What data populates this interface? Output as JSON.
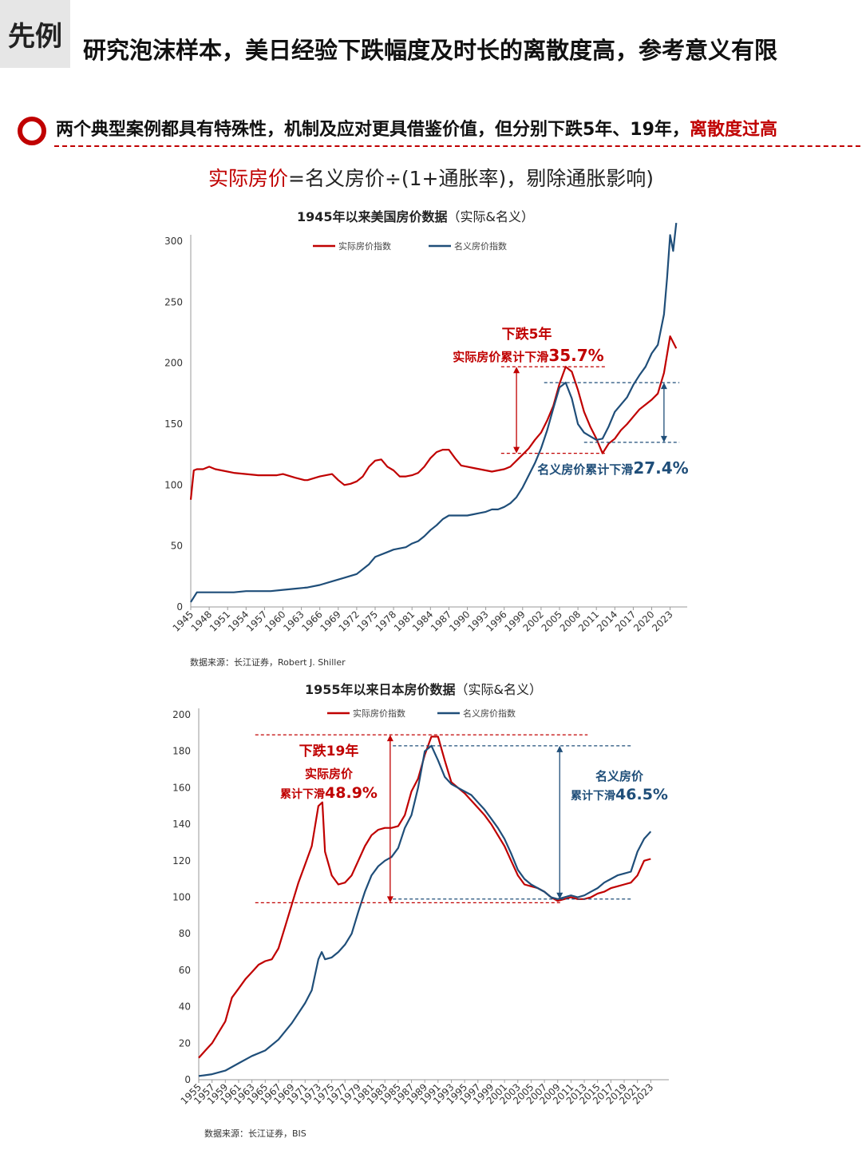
{
  "header": {
    "tag": "先例",
    "title": "研究泡沫样本，美日经验下跌幅度及时长的离散度高，参考意义有限"
  },
  "subhead": {
    "text": "两个典型案例都具有特殊性，机制及应对更具借鉴价值，但分别下跌5年、19年，",
    "highlight": "离散度过高"
  },
  "formula": {
    "red_part": "实际房价",
    "rest": "=名义房价÷(1+通胀率)，剔除通胀影响)"
  },
  "colors": {
    "real": "#c00000",
    "nominal": "#1f4e79",
    "accent": "#c00000"
  },
  "chart_data": [
    {
      "type": "line",
      "title": "1945年以来美国房价数据",
      "title_suffix": "（实际&名义）",
      "xlabel": "",
      "ylabel": "",
      "xlim": [
        1945,
        2025
      ],
      "ylim": [
        0,
        300
      ],
      "yticks": [
        "0",
        "50",
        "100",
        "150",
        "200",
        "250",
        "300"
      ],
      "xticks": [
        "1945",
        "1948",
        "1951",
        "1954",
        "1957",
        "1960",
        "1963",
        "1966",
        "1969",
        "1972",
        "1975",
        "1978",
        "1981",
        "1984",
        "1987",
        "1990",
        "1993",
        "1996",
        "1999",
        "2002",
        "2005",
        "2008",
        "2011",
        "2014",
        "2017",
        "2020",
        "2023"
      ],
      "legend": [
        "实际房价指数",
        "名义房价指数"
      ],
      "series": [
        {
          "name": "实际房价指数",
          "x": [
            1945,
            1945.5,
            1946,
            1947,
            1948,
            1949,
            1950,
            1952,
            1954,
            1956,
            1958,
            1959,
            1960,
            1962,
            1963.5,
            1964,
            1966,
            1967,
            1968,
            1969,
            1970,
            1971,
            1972,
            1973,
            1974,
            1975,
            1976,
            1977,
            1978,
            1979,
            1980,
            1981,
            1982,
            1983,
            1984,
            1985,
            1986,
            1987,
            1988,
            1989,
            1990,
            1991,
            1992,
            1993,
            1994,
            1995,
            1996,
            1997,
            1998,
            1999,
            2000,
            2001,
            2002,
            2003,
            2004,
            2005,
            2006,
            2007,
            2008,
            2009,
            2010,
            2011,
            2012,
            2013,
            2014,
            2015,
            2016,
            2017,
            2018,
            2019,
            2020,
            2021,
            2022,
            2023,
            2024
          ],
          "y": [
            88,
            112,
            113,
            113,
            115,
            113,
            112,
            110,
            109,
            108,
            108,
            108,
            109,
            106,
            104,
            104,
            107,
            108,
            109,
            104,
            100,
            101,
            103,
            107,
            115,
            120,
            121,
            115,
            112,
            107,
            107,
            108,
            110,
            115,
            122,
            127,
            129,
            129,
            122,
            116,
            115,
            114,
            113,
            112,
            111,
            112,
            113,
            115,
            120,
            125,
            130,
            137,
            143,
            153,
            165,
            183,
            197,
            193,
            178,
            160,
            148,
            138,
            126,
            134,
            138,
            145,
            150,
            156,
            162,
            166,
            170,
            175,
            192,
            222,
            212
          ]
        },
        {
          "name": "名义房价指数",
          "x": [
            1945,
            1946,
            1948,
            1950,
            1952,
            1954,
            1956,
            1958,
            1960,
            1962,
            1964,
            1966,
            1968,
            1970,
            1972,
            1974,
            1975,
            1977,
            1978,
            1979,
            1980,
            1981,
            1982,
            1983,
            1984,
            1985,
            1986,
            1987,
            1988,
            1989,
            1990,
            1991,
            1992,
            1993,
            1994,
            1995,
            1996,
            1997,
            1998,
            1999,
            2000,
            2001,
            2002,
            2003,
            2004,
            2005,
            2006,
            2007,
            2008,
            2009,
            2010,
            2011,
            2012,
            2013,
            2014,
            2015,
            2016,
            2017,
            2018,
            2019,
            2020,
            2021,
            2022,
            2022.5,
            2023,
            2023.5,
            2024
          ],
          "y": [
            4,
            12,
            12,
            12,
            12,
            13,
            13,
            13,
            14,
            15,
            16,
            18,
            21,
            24,
            27,
            35,
            41,
            45,
            47,
            48,
            49,
            52,
            54,
            58,
            63,
            67,
            72,
            75,
            75,
            75,
            75,
            76,
            77,
            78,
            80,
            80,
            82,
            85,
            90,
            98,
            108,
            118,
            130,
            145,
            163,
            180,
            184,
            171,
            150,
            143,
            140,
            137,
            138,
            148,
            160,
            166,
            172,
            182,
            190,
            197,
            208,
            215,
            240,
            270,
            305,
            292,
            315
          ]
        }
      ],
      "annotations": {
        "real_drop_title": "下跌5年",
        "real_drop_label": "实际房价累计下滑",
        "real_drop_value": "35.7%",
        "nominal_drop_label": "名义房价累计下滑",
        "nominal_drop_value": "27.4%"
      },
      "source": "数据来源：长江证券，Robert J. Shiller"
    },
    {
      "type": "line",
      "title": "1955年以来日本房价数据",
      "title_suffix": "（实际&名义）",
      "xlabel": "",
      "ylabel": "",
      "xlim": [
        1955,
        2025
      ],
      "ylim": [
        0,
        200
      ],
      "yticks": [
        "0",
        "20",
        "40",
        "60",
        "80",
        "100",
        "120",
        "140",
        "160",
        "180",
        "200"
      ],
      "xticks": [
        "1955",
        "1957",
        "1959",
        "1961",
        "1963",
        "1965",
        "1967",
        "1969",
        "1971",
        "1973",
        "1975",
        "1977",
        "1979",
        "1981",
        "1983",
        "1985",
        "1987",
        "1989",
        "1991",
        "1993",
        "1995",
        "1997",
        "1999",
        "2001",
        "2003",
        "2005",
        "2007",
        "2009",
        "2011",
        "2013",
        "2015",
        "2017",
        "2019",
        "2021",
        "2023"
      ],
      "legend": [
        "实际房价指数",
        "名义房价指数"
      ],
      "series": [
        {
          "name": "实际房价指数",
          "x": [
            1955,
            1956,
            1957,
            1958,
            1959,
            1960,
            1961,
            1962,
            1963,
            1964,
            1965,
            1966,
            1967,
            1968,
            1969,
            1970,
            1971,
            1972,
            1973,
            1973.6,
            1974,
            1975,
            1976,
            1977,
            1978,
            1979,
            1980,
            1981,
            1982,
            1983,
            1984,
            1985,
            1986,
            1987,
            1988,
            1989,
            1990,
            1991,
            1992,
            1993,
            1994,
            1995,
            1996,
            1997,
            1998,
            1999,
            2000,
            2001,
            2002,
            2003,
            2004,
            2005,
            2006,
            2007,
            2008,
            2009,
            2010,
            2011,
            2012,
            2013,
            2014,
            2015,
            2016,
            2017,
            2018,
            2019,
            2020,
            2021,
            2022,
            2023
          ],
          "y": [
            12,
            16,
            20,
            26,
            32,
            45,
            50,
            55,
            59,
            63,
            65,
            66,
            72,
            84,
            96,
            108,
            118,
            128,
            150,
            152,
            125,
            112,
            107,
            108,
            112,
            120,
            128,
            134,
            137,
            138,
            138,
            139,
            145,
            158,
            165,
            178,
            188,
            188,
            175,
            163,
            160,
            157,
            153,
            149,
            145,
            140,
            134,
            128,
            120,
            112,
            107,
            106,
            105,
            103,
            100,
            98,
            99,
            100,
            99,
            99,
            100,
            102,
            103,
            105,
            106,
            107,
            108,
            112,
            120,
            121
          ]
        },
        {
          "name": "名义房价指数",
          "x": [
            1955,
            1957,
            1959,
            1961,
            1963,
            1965,
            1967,
            1969,
            1971,
            1972,
            1973,
            1973.5,
            1974,
            1975,
            1976,
            1977,
            1978,
            1979,
            1980,
            1981,
            1982,
            1983,
            1984,
            1985,
            1986,
            1987,
            1988,
            1989,
            1990,
            1991,
            1992,
            1993,
            1994,
            1995,
            1996,
            1997,
            1998,
            1999,
            2000,
            2001,
            2002,
            2003,
            2004,
            2005,
            2006,
            2007,
            2008,
            2009,
            2010,
            2011,
            2012,
            2013,
            2014,
            2015,
            2016,
            2017,
            2018,
            2019,
            2020,
            2021,
            2022,
            2023
          ],
          "y": [
            2,
            3,
            5,
            9,
            13,
            16,
            22,
            31,
            42,
            49,
            66,
            70,
            66,
            67,
            70,
            74,
            80,
            92,
            103,
            112,
            117,
            120,
            122,
            127,
            138,
            145,
            160,
            180,
            183,
            175,
            166,
            162,
            160,
            158,
            156,
            152,
            148,
            143,
            138,
            132,
            124,
            115,
            110,
            107,
            105,
            103,
            100,
            99,
            100,
            101,
            100,
            101,
            103,
            105,
            108,
            110,
            112,
            113,
            114,
            125,
            132,
            136
          ]
        }
      ],
      "annotations": {
        "real_drop_title": "下跌19年",
        "real_drop_label1": "实际房价",
        "real_drop_label2": "累计下滑",
        "real_drop_value": "48.9%",
        "nominal_drop_label1": "名义房价",
        "nominal_drop_label2": "累计下滑",
        "nominal_drop_value": "46.5%"
      },
      "source": "数据来源：长江证券，BIS"
    }
  ]
}
